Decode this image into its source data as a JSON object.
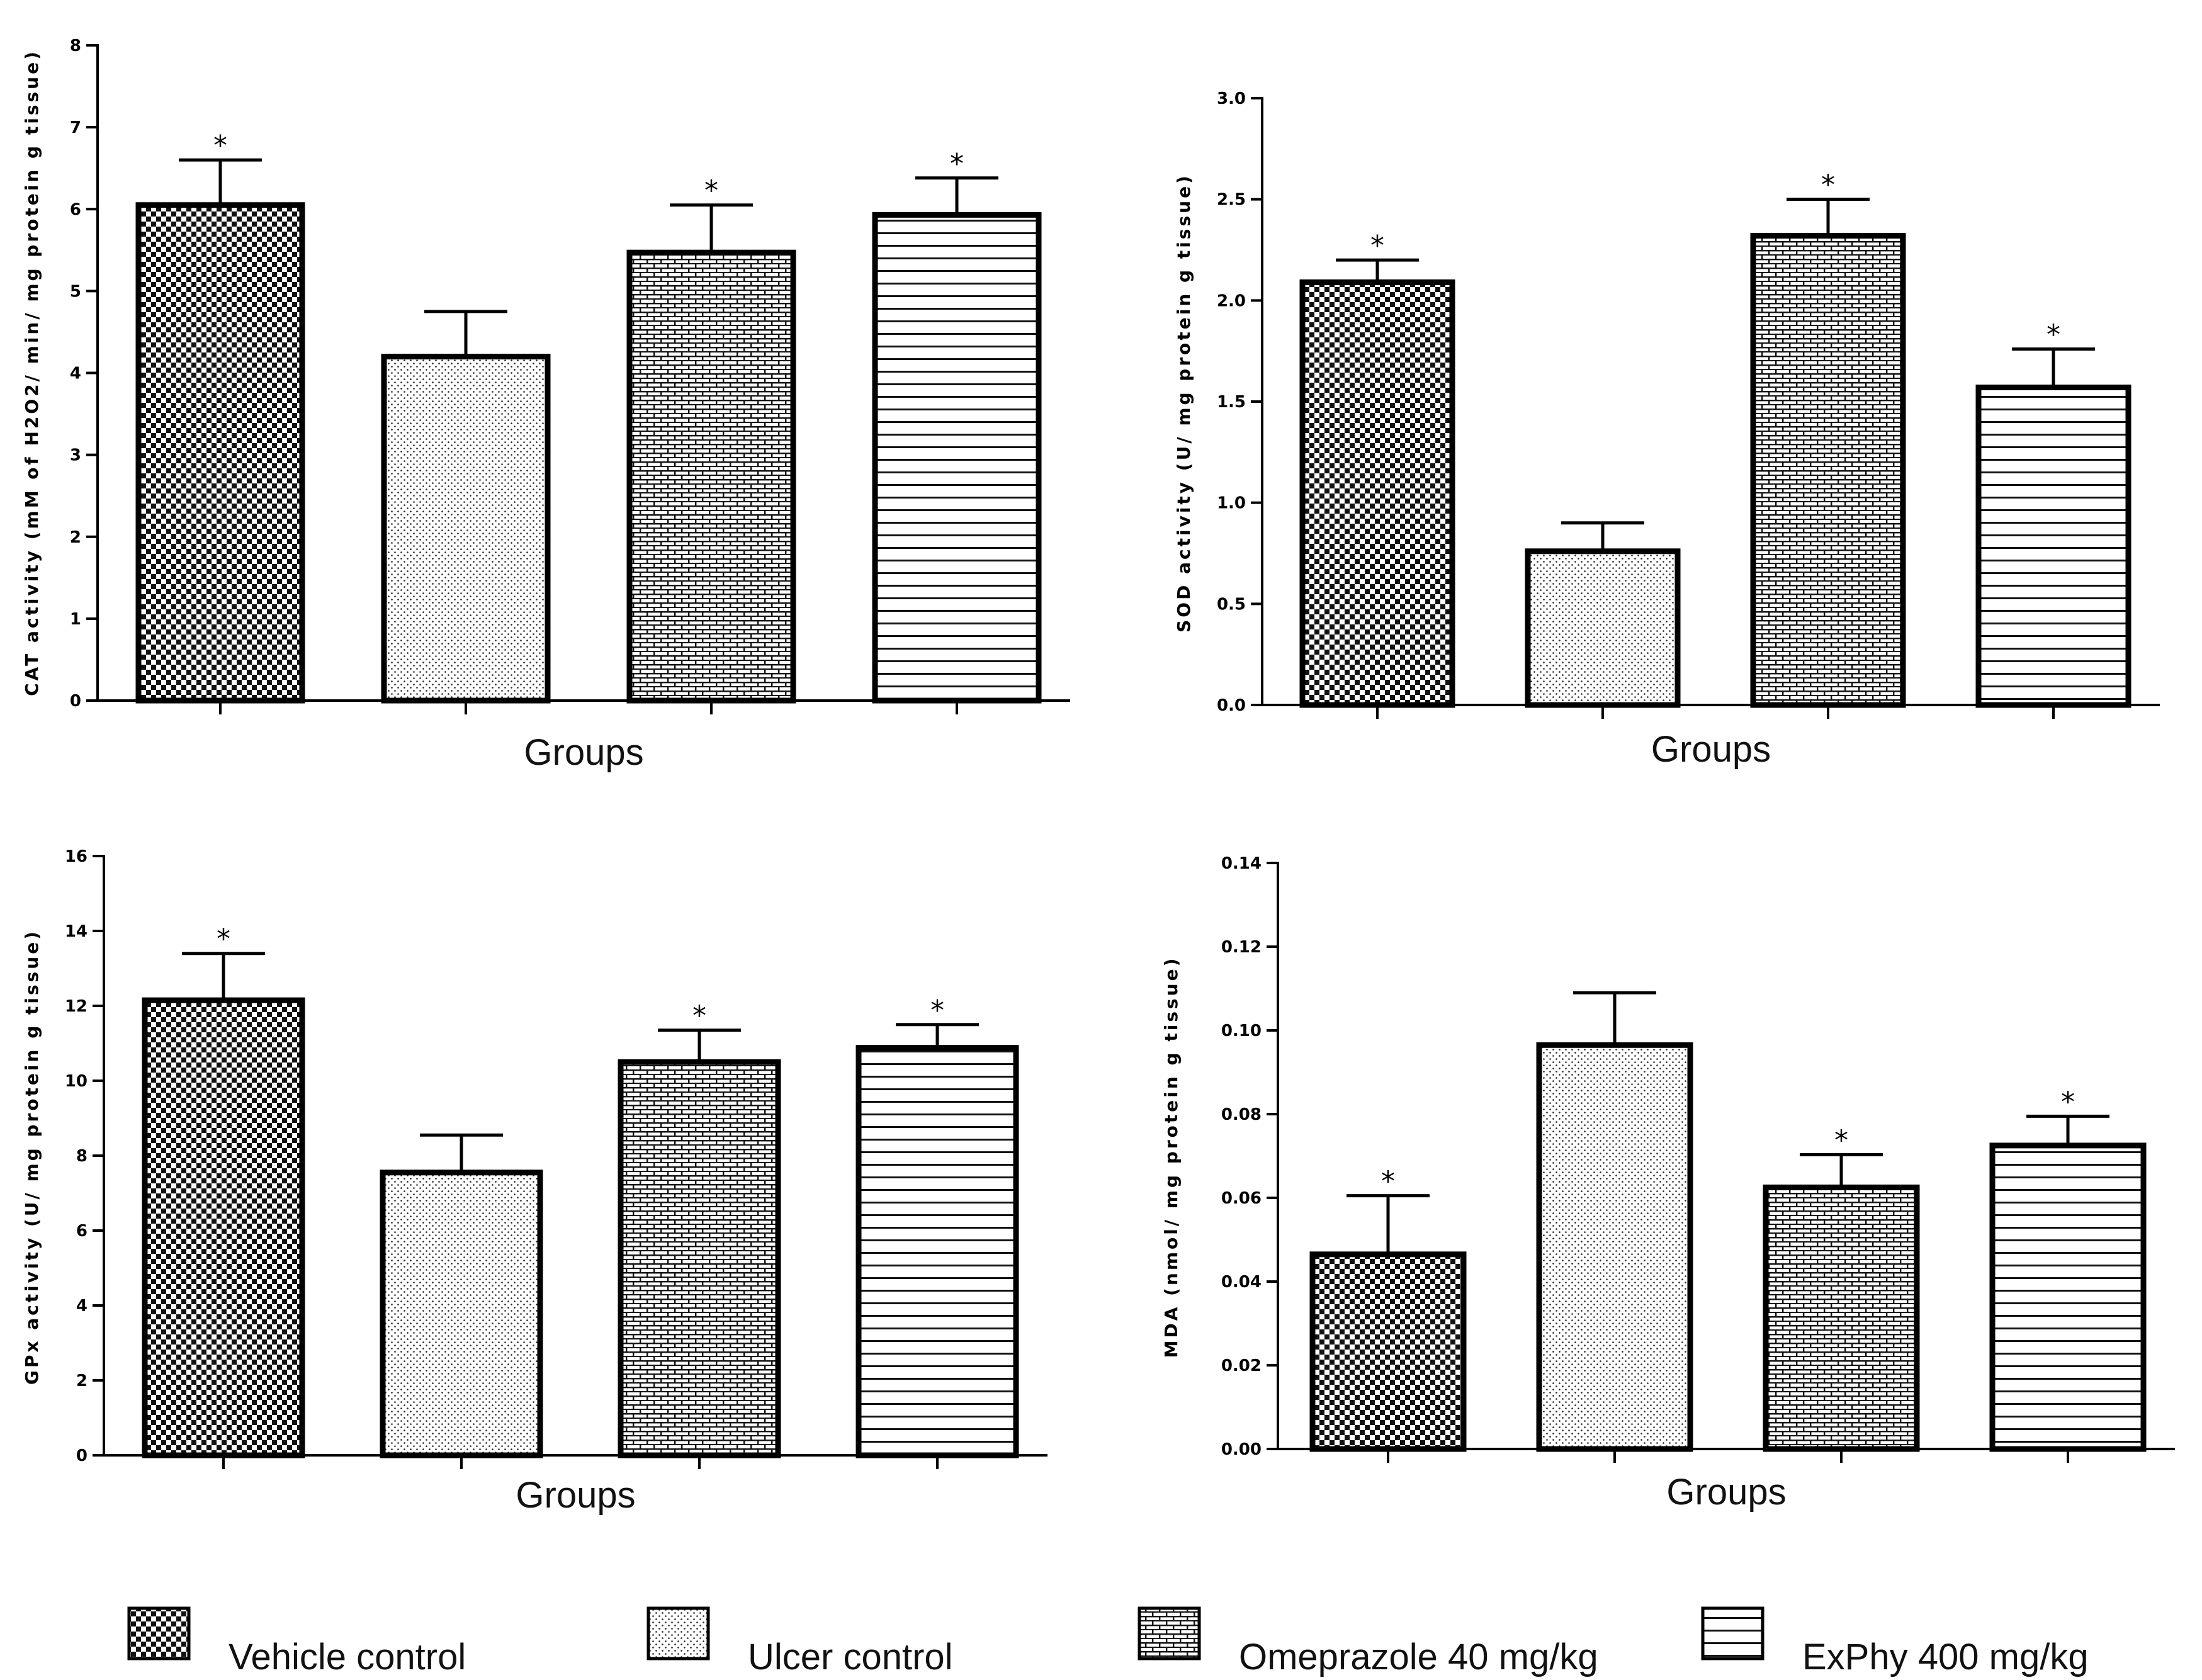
{
  "legend": [
    {
      "label": "Vehicle control",
      "pattern": "checker"
    },
    {
      "label": "Ulcer control",
      "pattern": "dots"
    },
    {
      "label": "Omeprazole 40 mg/kg",
      "pattern": "brick"
    },
    {
      "label": "ExPhy 400 mg/kg",
      "pattern": "hlines"
    }
  ],
  "chart_data": [
    {
      "type": "bar",
      "panel": "top-left",
      "title": "",
      "xlabel": "Groups",
      "ylabel": "CAT activity (mM of H2O2/ min/ mg protein g tissue)",
      "ylim": [
        0,
        8
      ],
      "yticks": [
        "0",
        "1",
        "2",
        "3",
        "4",
        "5",
        "6",
        "7",
        "8"
      ],
      "categories": [
        "Vehicle control",
        "Ulcer control",
        "Omeprazole 40 mg/kg",
        "ExPhy 400 mg/kg"
      ],
      "values": [
        6.05,
        4.2,
        5.47,
        5.93
      ],
      "errors": [
        0.55,
        0.55,
        0.58,
        0.45
      ],
      "significance": [
        "*",
        "",
        "*",
        "*"
      ]
    },
    {
      "type": "bar",
      "panel": "top-right",
      "title": "",
      "xlabel": "Groups",
      "ylabel": "SOD activity (U/ mg protein g tissue)",
      "ylim": [
        0,
        3
      ],
      "yticks": [
        "0.0",
        "0.5",
        "1.0",
        "1.5",
        "2.0",
        "2.5",
        "3.0"
      ],
      "categories": [
        "Vehicle control",
        "Ulcer control",
        "Omeprazole 40 mg/kg",
        "ExPhy 400 mg/kg"
      ],
      "values": [
        2.09,
        0.76,
        2.32,
        1.57
      ],
      "errors": [
        0.11,
        0.14,
        0.18,
        0.19
      ],
      "significance": [
        "*",
        "",
        "*",
        "*"
      ]
    },
    {
      "type": "bar",
      "panel": "bottom-left",
      "title": "",
      "xlabel": "Groups",
      "ylabel": "GPx activity (U/ mg protein g tissue)",
      "ylim": [
        0,
        16
      ],
      "yticks": [
        "0",
        "2",
        "4",
        "6",
        "8",
        "10",
        "12",
        "14",
        "16"
      ],
      "categories": [
        "Vehicle control",
        "Ulcer control",
        "Omeprazole 40 mg/kg",
        "ExPhy 400 mg/kg"
      ],
      "values": [
        12.15,
        7.55,
        10.5,
        10.88
      ],
      "errors": [
        1.25,
        1.0,
        0.85,
        0.62
      ],
      "significance": [
        "*",
        "",
        "*",
        "*"
      ]
    },
    {
      "type": "bar",
      "panel": "bottom-right",
      "title": "",
      "xlabel": "Groups",
      "ylabel": "MDA (nmol/ mg protein g tissue)",
      "ylim": [
        0,
        0.14
      ],
      "yticks": [
        "0.00",
        "0.02",
        "0.04",
        "0.06",
        "0.08",
        "0.10",
        "0.12",
        "0.14"
      ],
      "categories": [
        "Vehicle control",
        "Ulcer control",
        "Omeprazole 40 mg/kg",
        "ExPhy 400 mg/kg"
      ],
      "values": [
        0.0465,
        0.0965,
        0.0625,
        0.0725
      ],
      "errors": [
        0.014,
        0.0125,
        0.0078,
        0.007
      ],
      "significance": [
        "*",
        "",
        "*",
        "*"
      ]
    }
  ]
}
